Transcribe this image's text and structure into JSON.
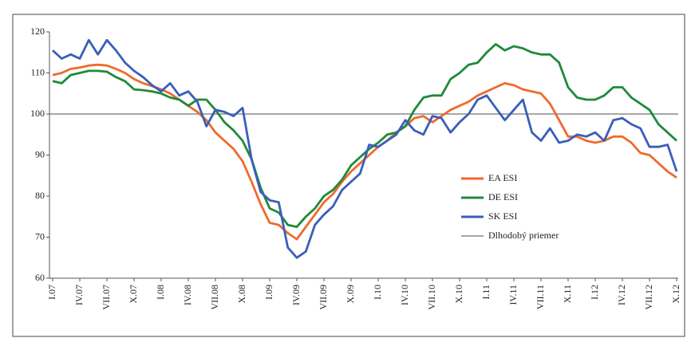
{
  "chart_data": {
    "type": "line",
    "categories": [
      "I.07",
      null,
      null,
      "IV.07",
      null,
      null,
      "VII.07",
      null,
      null,
      "X.07",
      null,
      null,
      "I.08",
      null,
      null,
      "IV.08",
      null,
      null,
      "VII.08",
      null,
      null,
      "X.08",
      null,
      null,
      "I.09",
      null,
      null,
      "IV.09",
      null,
      null,
      "VII.09",
      null,
      null,
      "X.09",
      null,
      null,
      "I.10",
      null,
      null,
      "IV.10",
      null,
      null,
      "VII.10",
      null,
      null,
      "X.10",
      null,
      null,
      "I.11",
      null,
      null,
      "IV.11",
      null,
      null,
      "VII.11",
      null,
      null,
      "X.11",
      null,
      null,
      "I.12",
      null,
      null,
      "IV.12",
      null,
      null,
      "VII.12",
      null,
      null,
      "X.12"
    ],
    "series": [
      {
        "name": "EA ESI",
        "color": "#ef6a2e",
        "values": [
          109.5,
          110,
          111,
          111.3,
          111.8,
          112,
          111.8,
          111,
          110,
          108.5,
          107.5,
          106.8,
          106,
          105,
          103.5,
          102,
          100.5,
          98.5,
          95.5,
          93.5,
          91.5,
          88.5,
          83.5,
          78,
          73.5,
          73,
          71,
          69.5,
          72.5,
          75.5,
          78.5,
          80.5,
          83.5,
          86,
          88,
          90,
          92,
          93.5,
          95.5,
          97,
          99,
          99.5,
          98,
          99.5,
          101,
          102,
          103,
          104.5,
          105.5,
          106.5,
          107.5,
          107,
          106,
          105.5,
          105,
          102.5,
          98.5,
          94.5,
          94.5,
          93.5,
          93,
          93.5,
          94.5,
          94.5,
          93,
          90.5,
          90,
          88,
          86,
          84.5
        ]
      },
      {
        "name": "DE ESI",
        "color": "#1f8a3a",
        "values": [
          108,
          107.5,
          109.5,
          110,
          110.5,
          110.5,
          110.3,
          109,
          108,
          106,
          105.8,
          105.5,
          105,
          104,
          103.5,
          102,
          103.5,
          103.5,
          101,
          98,
          96,
          93.5,
          89,
          82,
          77,
          76,
          73,
          72.5,
          75,
          77,
          80,
          81.5,
          84,
          87.5,
          89.5,
          91.5,
          93,
          95,
          95.5,
          97,
          101,
          104,
          104.5,
          104.5,
          108.5,
          110,
          112,
          112.5,
          115,
          117,
          115.5,
          116.5,
          116,
          115,
          114.5,
          114.5,
          112.5,
          106.5,
          104,
          103.5,
          103.5,
          104.5,
          106.5,
          106.5,
          104,
          102.5,
          101,
          97.5,
          95.5,
          93.5
        ]
      },
      {
        "name": "SK ESI",
        "color": "#3a5fb8",
        "values": [
          115.5,
          113.5,
          114.5,
          113.5,
          118,
          114.5,
          118,
          115.5,
          112.5,
          110.5,
          109,
          107,
          105.5,
          107.5,
          104.5,
          105.5,
          103,
          97,
          101,
          100.5,
          99.5,
          101.5,
          89,
          81,
          79,
          78.5,
          67.5,
          65,
          66.5,
          73,
          75.5,
          77.5,
          81.5,
          83.5,
          85.5,
          92.5,
          92,
          93.5,
          95,
          98.5,
          96,
          95,
          99.5,
          99,
          95.5,
          98,
          100,
          103.5,
          104.5,
          101.5,
          98.5,
          101,
          103.5,
          95.5,
          93.5,
          96.5,
          93,
          93.5,
          95,
          94.5,
          95.5,
          93.5,
          98.5,
          99,
          97.5,
          96.5,
          92,
          92,
          92.5,
          86
        ]
      }
    ],
    "reference_line": {
      "name": "Dlhodobý priemer",
      "value": 100,
      "color": "#8a8a8a"
    },
    "ylim": [
      60,
      120
    ],
    "yticks": [
      60,
      70,
      80,
      90,
      100,
      110,
      120
    ]
  }
}
